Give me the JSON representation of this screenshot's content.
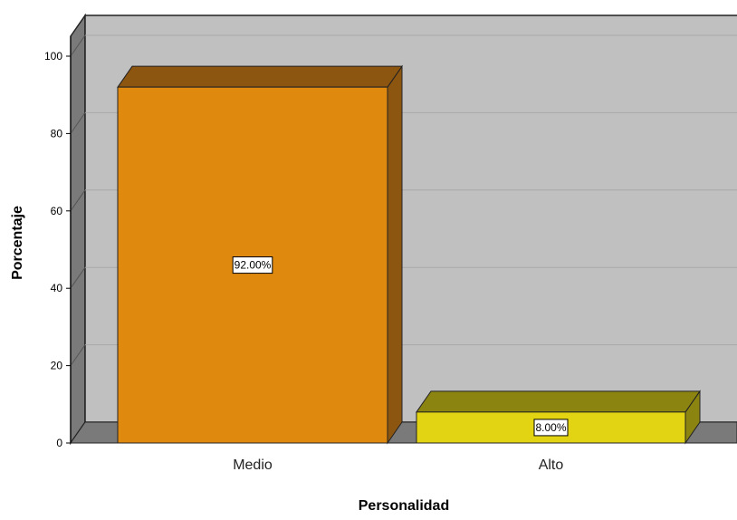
{
  "chart_data": {
    "type": "bar",
    "categories": [
      "Medio",
      "Alto"
    ],
    "values": [
      92.0,
      8.0
    ],
    "data_labels": [
      "92.00%",
      "8.00%"
    ],
    "xlabel": "Personalidad",
    "ylabel": "Porcentaje",
    "ylim": [
      0,
      100
    ],
    "yticks": [
      0,
      20,
      40,
      60,
      80,
      100
    ],
    "grid": true,
    "three_d": true,
    "colors": {
      "bars": [
        "#E0890F",
        "#E2D412"
      ],
      "bar_tops": [
        "#8C5510",
        "#8C8410"
      ],
      "bar_sides": [
        "#8C5510",
        "#8C8410"
      ],
      "wall": "#C0C0C0",
      "left_wall": "#7A7A7A",
      "floor": "#7A7A7A",
      "gridline": "#A8A8A8"
    }
  }
}
